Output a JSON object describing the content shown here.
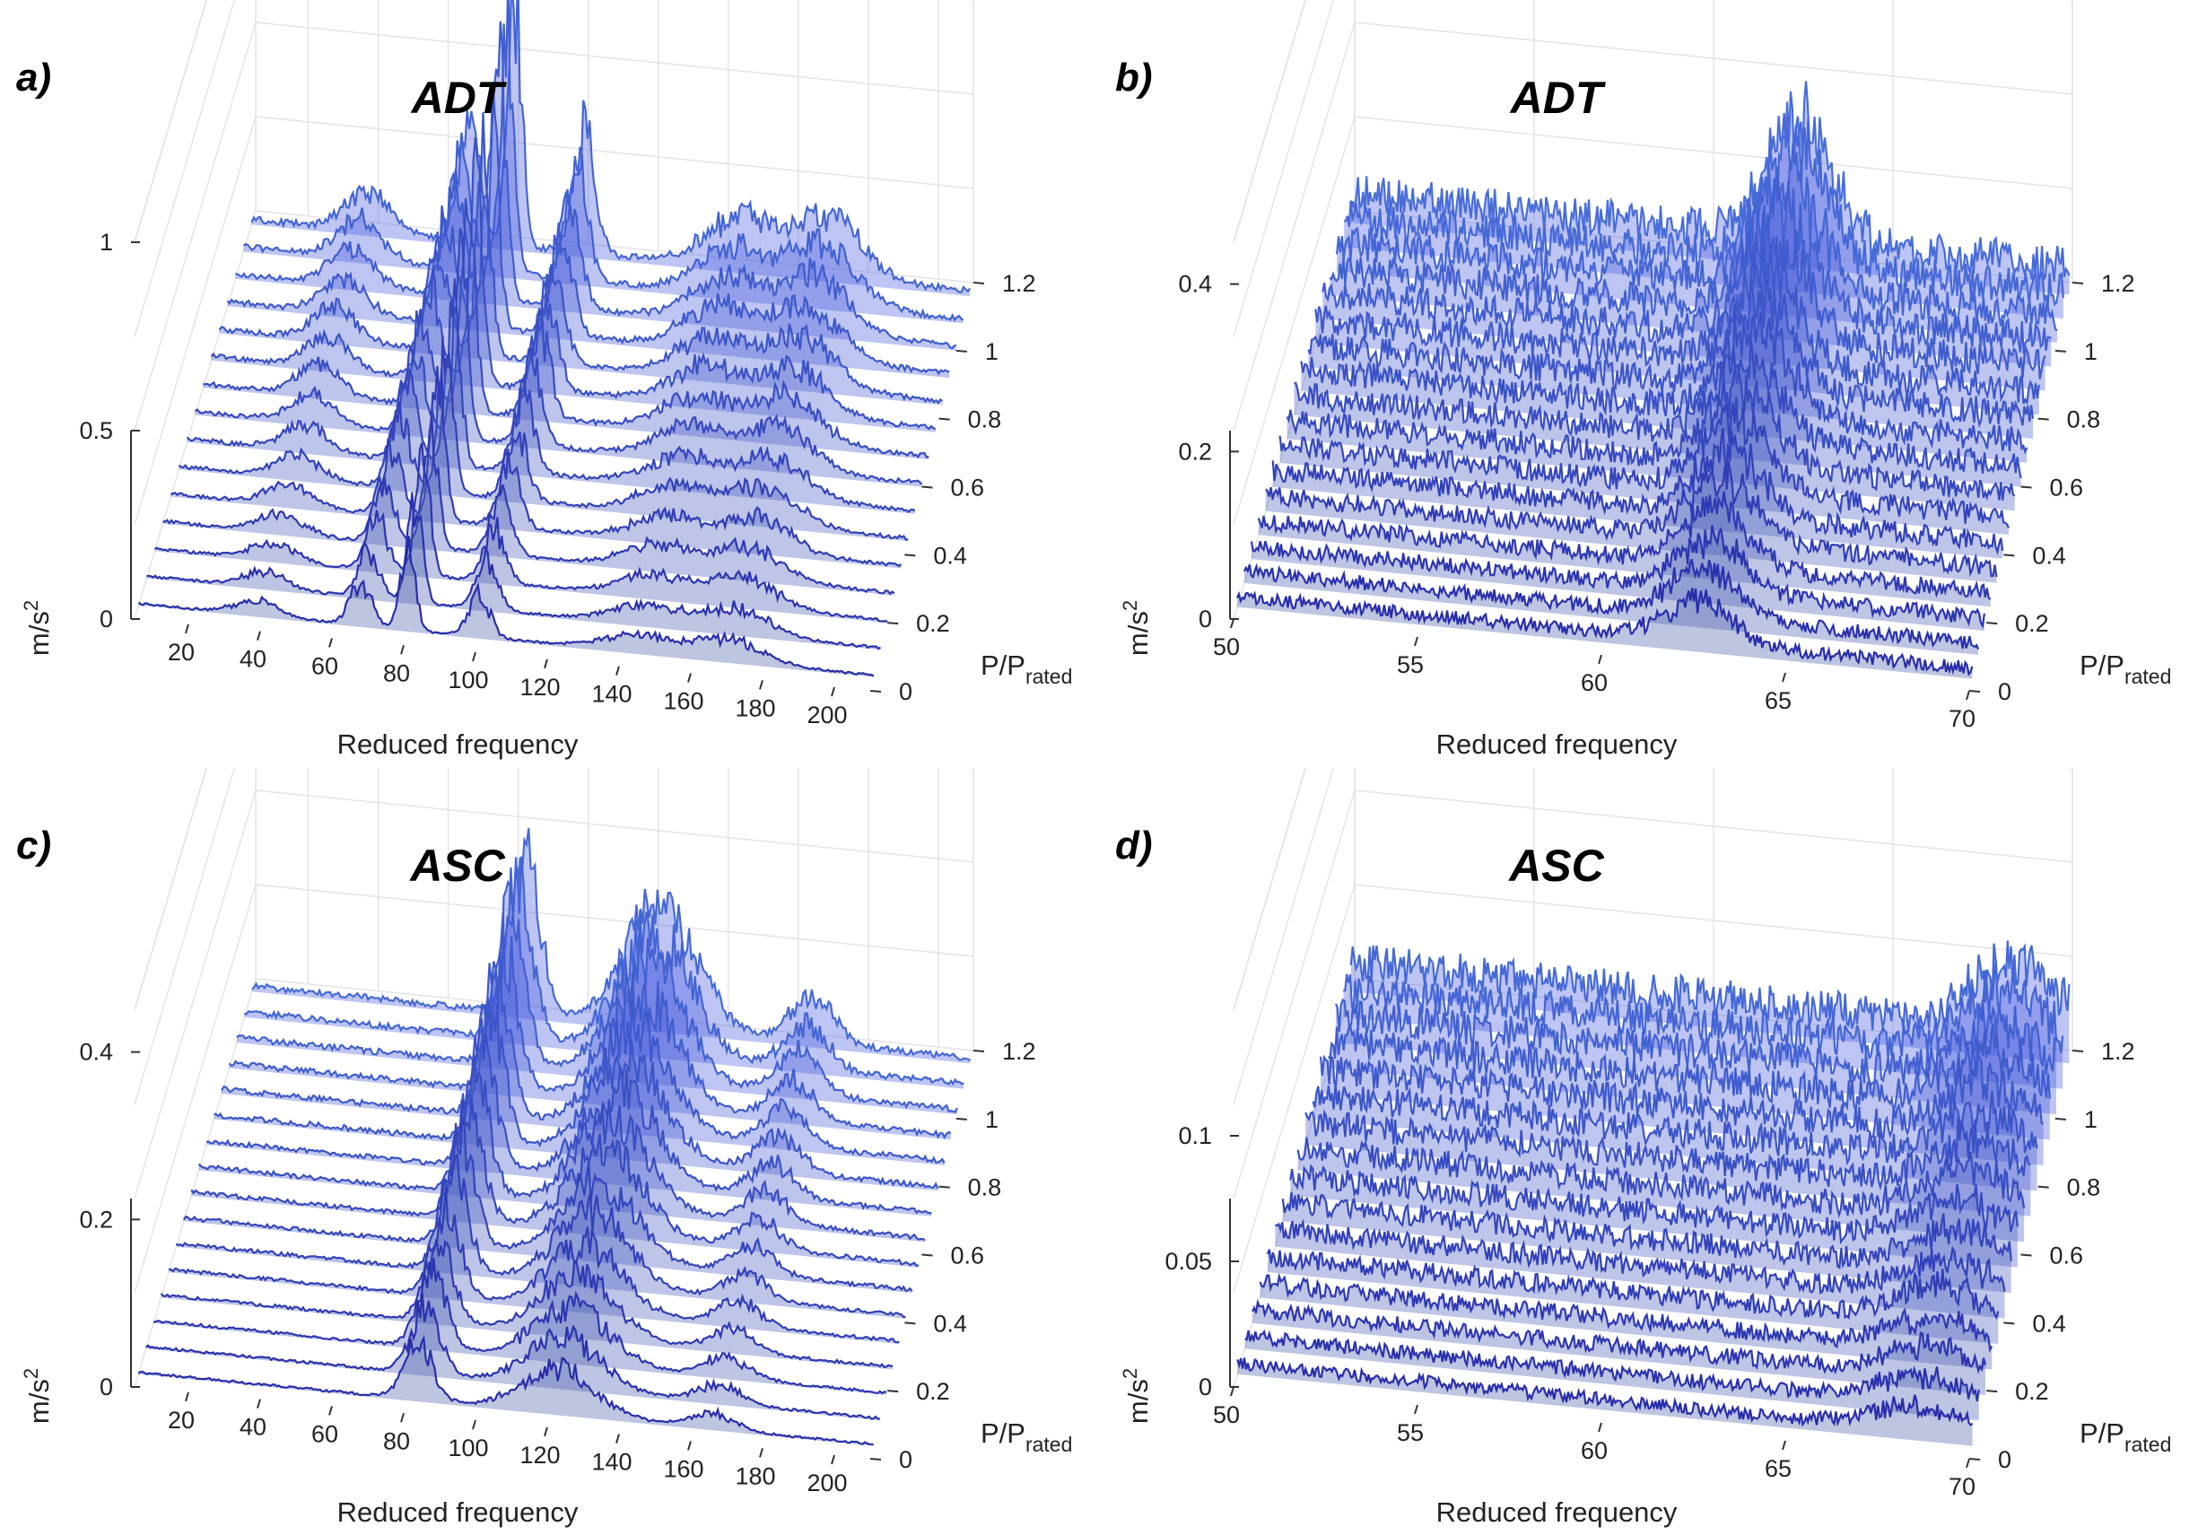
{
  "chart_data": [
    {
      "panel": "a)",
      "type": "waterfall-3d",
      "title": "ADT",
      "xlabel": "Reduced frequency",
      "ylabel": "P/P",
      "ylabel_sub": "rated",
      "zlabel": "m/s",
      "zlabel_sup": "2",
      "xlim": [
        5,
        210
      ],
      "ylim": [
        0,
        1.2
      ],
      "zlim": [
        0,
        1
      ],
      "xticks": [
        "20",
        "40",
        "60",
        "80",
        "100",
        "120",
        "140",
        "160",
        "180",
        "200"
      ],
      "yticks": [
        "0",
        "0.2",
        "0.4",
        "0.6",
        "0.8",
        "1",
        "1.2"
      ],
      "zticks": [
        "0",
        "0.5",
        "1"
      ],
      "slices": 15,
      "peaks": [
        {
          "x": 38,
          "amp": 0.12,
          "width": 6
        },
        {
          "x": 67,
          "amp": 0.35,
          "width": 3
        },
        {
          "x": 80,
          "amp": 0.75,
          "width": 2
        },
        {
          "x": 100,
          "amp": 0.35,
          "width": 3
        },
        {
          "x": 145,
          "amp": 0.15,
          "width": 10
        },
        {
          "x": 170,
          "amp": 0.18,
          "width": 9
        }
      ]
    },
    {
      "panel": "b)",
      "type": "waterfall-3d",
      "title": "ADT",
      "xlabel": "Reduced frequency",
      "ylabel": "P/P",
      "ylabel_sub": "rated",
      "zlabel": "m/s",
      "zlabel_sup": "2",
      "xlim": [
        50,
        70
      ],
      "ylim": [
        0,
        1.2
      ],
      "zlim": [
        0,
        0.45
      ],
      "xticks": [
        "50",
        "55",
        "60",
        "65",
        "70"
      ],
      "yticks": [
        "0",
        "0.2",
        "0.4",
        "0.6",
        "0.8",
        "1",
        "1.2"
      ],
      "zticks": [
        "0",
        "0.2",
        "0.4"
      ],
      "slices": 17,
      "peaks": [
        {
          "x": 62.5,
          "amp": 0.16,
          "width": 0.9
        }
      ]
    },
    {
      "panel": "c)",
      "type": "waterfall-3d",
      "title": "ASC",
      "xlabel": "Reduced frequency",
      "ylabel": "P/P",
      "ylabel_sub": "rated",
      "zlabel": "m/s",
      "zlabel_sup": "2",
      "xlim": [
        5,
        210
      ],
      "ylim": [
        0,
        1.2
      ],
      "zlim": [
        0,
        0.45
      ],
      "xticks": [
        "20",
        "40",
        "60",
        "80",
        "100",
        "120",
        "140",
        "160",
        "180",
        "200"
      ],
      "yticks": [
        "0",
        "0.2",
        "0.4",
        "0.6",
        "0.8",
        "1",
        "1.2"
      ],
      "zticks": [
        "0",
        "0.2",
        "0.4"
      ],
      "slices": 16,
      "peaks": [
        {
          "x": 83,
          "amp": 0.22,
          "width": 4
        },
        {
          "x": 122,
          "amp": 0.17,
          "width": 10
        },
        {
          "x": 165,
          "amp": 0.06,
          "width": 6
        }
      ]
    },
    {
      "panel": "d)",
      "type": "waterfall-3d",
      "title": "ASC",
      "xlabel": "Reduced frequency",
      "ylabel": "P/P",
      "ylabel_sub": "rated",
      "zlabel": "m/s",
      "zlabel_sup": "2",
      "xlim": [
        50,
        70
      ],
      "ylim": [
        0,
        1.2
      ],
      "zlim": [
        0,
        0.15
      ],
      "xticks": [
        "50",
        "55",
        "60",
        "65",
        "70"
      ],
      "yticks": [
        "0",
        "0.2",
        "0.4",
        "0.6",
        "0.8",
        "1",
        "1.2"
      ],
      "zticks": [
        "0",
        "0.05",
        "0.1"
      ],
      "slices": 16,
      "peaks": [
        {
          "x": 68.5,
          "amp": 0.03,
          "width": 1.2
        }
      ]
    }
  ]
}
